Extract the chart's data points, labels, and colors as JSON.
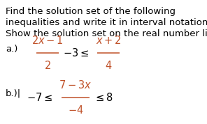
{
  "background_color": "#ffffff",
  "text_color": "#000000",
  "orange": "#c0522a",
  "line1": "Find the solution set of the following",
  "line2": "inequalities and write it in interval notation.",
  "line3": "Show the solution set on the real number line.",
  "figsize": [
    2.96,
    1.78
  ],
  "dpi": 100,
  "body_fontsize": 9.5,
  "math_fontsize": 10.5
}
